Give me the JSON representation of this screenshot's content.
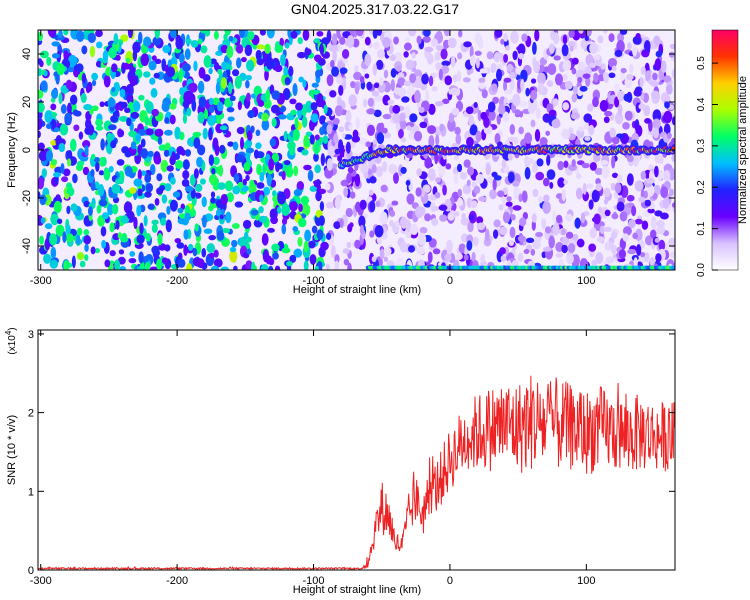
{
  "title": "GN04.2025.317.03.22.G17",
  "chart_data": [
    {
      "type": "heatmap",
      "xlabel": "Height of straight line (km)",
      "ylabel": "Frequency (Hz)",
      "xlim": [
        -302,
        165
      ],
      "ylim": [
        -50,
        50
      ],
      "xticks": [
        -300,
        -200,
        -100,
        0,
        100
      ],
      "yticks": [
        -40,
        -20,
        0,
        20,
        40
      ],
      "colorbar": {
        "label": "Normalized spectral amplitude",
        "range": [
          0,
          0.58
        ],
        "ticks": [
          0.0,
          0.1,
          0.2,
          0.3,
          0.4,
          0.5
        ],
        "colormap": [
          "#ffffff",
          "#d9c2ff",
          "#6a00ff",
          "#2222ff",
          "#00bfff",
          "#00ff66",
          "#aaff00",
          "#ffd000",
          "#ff3300",
          "#ff0066"
        ]
      },
      "features": {
        "signal_line_frequency_hz": 0,
        "signal_onset_height_km": -80,
        "edge_line_frequency_hz": -49,
        "background_change_height_km": -90
      }
    },
    {
      "type": "line",
      "xlabel": "Height of straight line (km)",
      "ylabel": "SNR (10 * v/v)",
      "y_multiplier_label": "(x10",
      "y_multiplier_exp": "4",
      "xlim": [
        -302,
        165
      ],
      "ylim": [
        0,
        3.05
      ],
      "xticks": [
        -300,
        -200,
        -100,
        0,
        100
      ],
      "yticks": [
        0,
        1,
        2,
        3
      ],
      "line_color": "#ee2222",
      "envelope_x": [
        -302,
        -65,
        -60,
        -55,
        -50,
        -45,
        -40,
        -35,
        -30,
        -25,
        -20,
        -15,
        -10,
        0,
        10,
        20,
        30,
        40,
        50,
        60,
        70,
        80,
        90,
        100,
        110,
        120,
        130,
        140,
        150,
        165
      ],
      "envelope_y": [
        0.02,
        0.02,
        0.08,
        0.5,
        0.8,
        0.7,
        0.35,
        0.3,
        0.7,
        0.9,
        0.7,
        1.0,
        1.05,
        1.4,
        1.65,
        1.75,
        1.8,
        1.85,
        1.8,
        1.9,
        1.85,
        1.85,
        1.8,
        1.75,
        1.8,
        1.75,
        1.7,
        1.75,
        1.7,
        1.7
      ],
      "noise_amplitude": [
        0.01,
        0.01,
        0.06,
        0.2,
        0.35,
        0.3,
        0.15,
        0.15,
        0.3,
        0.3,
        0.3,
        0.3,
        0.35,
        0.4,
        0.45,
        0.5,
        0.55,
        0.6,
        0.6,
        0.65,
        0.6,
        0.6,
        0.55,
        0.55,
        0.55,
        0.5,
        0.5,
        0.5,
        0.45,
        0.45
      ]
    }
  ]
}
